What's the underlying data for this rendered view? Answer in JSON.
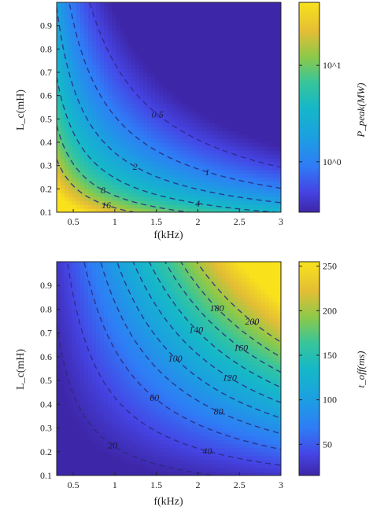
{
  "chart_data": [
    {
      "type": "heatmap",
      "title": "",
      "xlabel": "f(kHz)",
      "ylabel": "L_c(mH)",
      "xlim": [
        0.3,
        3
      ],
      "ylim": [
        0.1,
        1.0
      ],
      "x_ticks": [
        "0.5",
        "1",
        "1.5",
        "2",
        "2.5",
        "3"
      ],
      "y_ticks": [
        "0.1",
        "0.2",
        "0.3",
        "0.4",
        "0.5",
        "0.6",
        "0.7",
        "0.8",
        "0.9"
      ],
      "colorbar": {
        "label": "P_peak(MW)",
        "scale": "log",
        "range": [
          0.3,
          45
        ],
        "ticks": [
          "10^0",
          "10^1"
        ]
      },
      "contour_levels": [
        "0.5",
        "1",
        "2",
        "4",
        "8",
        "16"
      ],
      "colors": {
        "low": "#3e26a8",
        "mid": "#16b8c8",
        "high": "#f9e21c"
      }
    },
    {
      "type": "heatmap",
      "title": "",
      "xlabel": "f(kHz)",
      "ylabel": "L_c(mH)",
      "xlim": [
        0.3,
        3
      ],
      "ylim": [
        0.1,
        1.0
      ],
      "x_ticks": [
        "0.5",
        "1",
        "1.5",
        "2",
        "2.5",
        "3"
      ],
      "y_ticks": [
        "0.1",
        "0.2",
        "0.3",
        "0.4",
        "0.5",
        "0.6",
        "0.7",
        "0.8",
        "0.9"
      ],
      "colorbar": {
        "label": "t_off(ms)",
        "scale": "linear",
        "range": [
          15,
          255
        ],
        "ticks": [
          "50",
          "100",
          "150",
          "200",
          "250"
        ]
      },
      "contour_levels": [
        "20",
        "40",
        "60",
        "80",
        "100",
        "120",
        "140",
        "160",
        "180",
        "200"
      ],
      "colors": {
        "low": "#3e26a8",
        "mid": "#16b8c8",
        "high": "#f9e21c"
      }
    }
  ]
}
